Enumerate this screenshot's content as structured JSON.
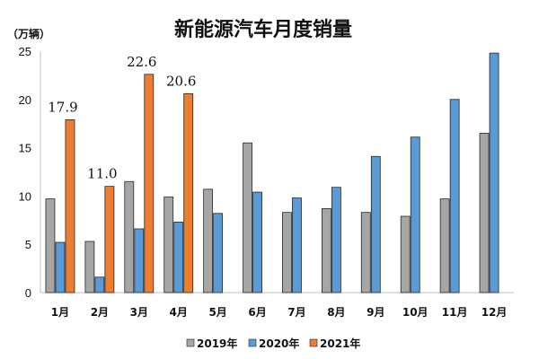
{
  "chart_data": {
    "type": "bar",
    "title": "新能源汽车月度销量",
    "unit_label": "（万辆）",
    "categories": [
      "1月",
      "2月",
      "3月",
      "4月",
      "5月",
      "6月",
      "7月",
      "8月",
      "9月",
      "10月",
      "11月",
      "12月"
    ],
    "series": [
      {
        "name": "2019年",
        "color": "#a6a6a6",
        "values": [
          9.7,
          5.3,
          11.5,
          9.9,
          10.7,
          15.5,
          8.3,
          8.7,
          8.3,
          7.9,
          9.7,
          16.5
        ]
      },
      {
        "name": "2020年",
        "color": "#5b9bd5",
        "values": [
          5.2,
          1.6,
          6.6,
          7.3,
          8.2,
          10.4,
          9.8,
          10.9,
          14.1,
          16.1,
          20.0,
          24.8
        ]
      },
      {
        "name": "2021年",
        "color": "#ed7d31",
        "values": [
          17.9,
          11.0,
          22.6,
          20.6,
          null,
          null,
          null,
          null,
          null,
          null,
          null,
          null
        ]
      }
    ],
    "data_labels": [
      {
        "category": "1月",
        "series": "2021年",
        "text": "17.9"
      },
      {
        "category": "2月",
        "series": "2021年",
        "text": "11.0"
      },
      {
        "category": "3月",
        "series": "2021年",
        "text": "22.6"
      },
      {
        "category": "4月",
        "series": "2021年",
        "text": "20.6"
      }
    ],
    "yticks": [
      "0",
      "5",
      "10",
      "15",
      "20",
      "25"
    ],
    "ylim": [
      0,
      25
    ],
    "legend": "bottom",
    "grid": false
  }
}
